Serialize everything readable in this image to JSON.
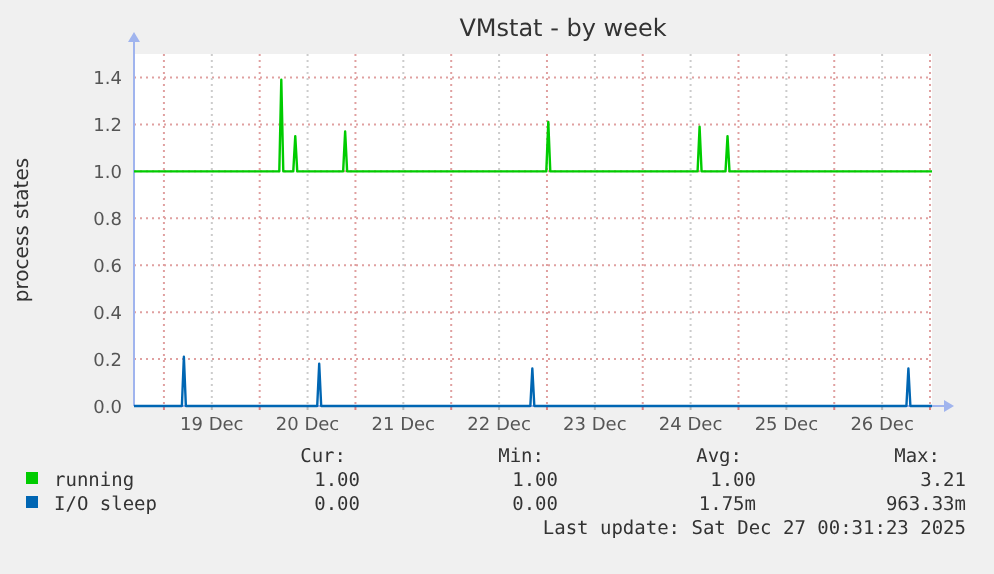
{
  "chart_data": {
    "type": "line",
    "title": "VMstat - by week",
    "ylabel": "process states",
    "xlim": [
      "2025-12-18T16:30",
      "2025-12-27T00:30"
    ],
    "xticks": [
      {
        "value": "2025-12-19T00:00",
        "label": null
      },
      {
        "value": "2025-12-19T12:00",
        "label": "19 Dec"
      },
      {
        "value": "2025-12-20T00:00",
        "label": null
      },
      {
        "value": "2025-12-20T12:00",
        "label": "20 Dec"
      },
      {
        "value": "2025-12-21T00:00",
        "label": null
      },
      {
        "value": "2025-12-21T12:00",
        "label": "21 Dec"
      },
      {
        "value": "2025-12-22T00:00",
        "label": null
      },
      {
        "value": "2025-12-22T12:00",
        "label": "22 Dec"
      },
      {
        "value": "2025-12-23T00:00",
        "label": null
      },
      {
        "value": "2025-12-23T12:00",
        "label": "23 Dec"
      },
      {
        "value": "2025-12-24T00:00",
        "label": null
      },
      {
        "value": "2025-12-24T12:00",
        "label": "24 Dec"
      },
      {
        "value": "2025-12-25T00:00",
        "label": null
      },
      {
        "value": "2025-12-25T12:00",
        "label": "25 Dec"
      },
      {
        "value": "2025-12-26T00:00",
        "label": null
      },
      {
        "value": "2025-12-26T12:00",
        "label": "26 Dec"
      },
      {
        "value": "2025-12-27T00:00",
        "label": null
      }
    ],
    "ylim": [
      0,
      1.5
    ],
    "yticks": [
      {
        "value": 0,
        "label": "0.0"
      },
      {
        "value": 0.2,
        "label": "0.2"
      },
      {
        "value": 0.4,
        "label": "0.4"
      },
      {
        "value": 0.6,
        "label": "0.6"
      },
      {
        "value": 0.8,
        "label": "0.8"
      },
      {
        "value": 1,
        "label": "1.0"
      },
      {
        "value": 1.2,
        "label": "1.2"
      },
      {
        "value": 1.4,
        "label": "1.4"
      }
    ],
    "grid": true,
    "legend": "bottom",
    "marker": "none",
    "line_style": "solid",
    "series": [
      {
        "name": "running",
        "color": "#00cc00",
        "x": [
          "2025-12-18T16:30",
          "2025-12-20T04:55",
          "2025-12-20T05:25",
          "2025-12-20T05:55",
          "2025-12-20T08:25",
          "2025-12-20T08:55",
          "2025-12-20T09:25",
          "2025-12-20T20:55",
          "2025-12-20T21:25",
          "2025-12-20T21:55",
          "2025-12-22T23:50",
          "2025-12-23T00:20",
          "2025-12-23T00:50",
          "2025-12-24T13:45",
          "2025-12-24T14:15",
          "2025-12-24T14:45",
          "2025-12-24T20:45",
          "2025-12-24T21:15",
          "2025-12-24T21:45",
          "2025-12-27T00:30"
        ],
        "values": [
          1,
          1,
          1.39,
          1,
          1,
          1.15,
          1,
          1,
          1.17,
          1,
          1,
          1.21,
          1,
          1,
          1.19,
          1,
          1,
          1.15,
          1,
          1
        ]
      },
      {
        "name": "I/O sleep",
        "color": "#0066b3",
        "x": [
          "2025-12-18T16:30",
          "2025-12-19T04:30",
          "2025-12-19T05:00",
          "2025-12-19T05:30",
          "2025-12-20T14:25",
          "2025-12-20T14:55",
          "2025-12-20T15:25",
          "2025-12-22T19:50",
          "2025-12-22T20:20",
          "2025-12-22T20:50",
          "2025-12-26T18:05",
          "2025-12-26T18:35",
          "2025-12-26T19:05",
          "2025-12-27T00:30"
        ],
        "values": [
          0,
          0,
          0.21,
          0,
          0,
          0.18,
          0,
          0,
          0.16,
          0,
          0,
          0.16,
          0,
          0
        ]
      }
    ],
    "annotations": [
      "Cur:",
      "Min:",
      "Avg:",
      "Max:",
      "1.00",
      "1.00",
      "1.00",
      "3.21",
      "0.00",
      "0.00",
      "1.75m",
      "963.33m",
      "Last update: Sat Dec 27 00:31:23 2025"
    ]
  }
}
